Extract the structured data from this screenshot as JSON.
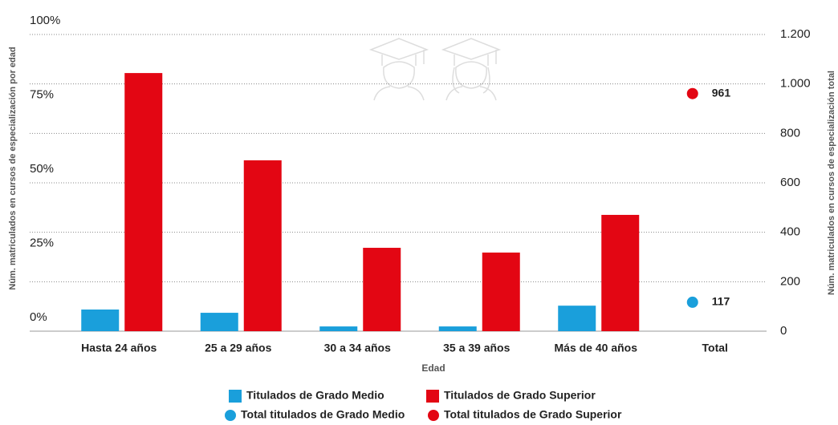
{
  "chart_data": {
    "type": "bar",
    "x_label": "Edad",
    "y_label": "Núm. matriculados en cursos de especialización por edad",
    "y2_label": "Núm. matriculados en cursos de especialización total",
    "categories": [
      "Hasta 24 años",
      "25 a 29 años",
      "30 a 34 años",
      "35 a 39 años",
      "Más de 40 años",
      "Total"
    ],
    "series": [
      {
        "name": "Titulados de Grado Medio",
        "type": "bar",
        "color": "#1a9fdb",
        "values": [
          7.3,
          6.2,
          1.6,
          1.6,
          8.6,
          null
        ]
      },
      {
        "name": "Titulados de Grado Superior",
        "type": "bar",
        "color": "#e30613",
        "values": [
          87,
          57.6,
          28.1,
          26.5,
          39.2,
          null
        ]
      },
      {
        "name": "Total titulados de Grado Medio",
        "type": "scatter",
        "axis": "y2",
        "color": "#1a9fdb",
        "values": [
          null,
          null,
          null,
          null,
          null,
          117
        ]
      },
      {
        "name": "Total titulados de Grado Superior",
        "type": "scatter",
        "axis": "y2",
        "color": "#e30613",
        "values": [
          null,
          null,
          null,
          null,
          null,
          961
        ]
      }
    ],
    "ylim": [
      0,
      100
    ],
    "yticks": [
      {
        "value": 0,
        "label": "0%"
      },
      {
        "value": 25,
        "label": "25%"
      },
      {
        "value": 50,
        "label": "50%"
      },
      {
        "value": 75,
        "label": "75%"
      },
      {
        "value": 100,
        "label": "100%"
      }
    ],
    "y2lim": [
      0,
      1200
    ],
    "y2ticks": [
      0,
      200,
      400,
      600,
      800,
      {
        "value": 1000,
        "label": "1.000"
      },
      {
        "value": 1200,
        "label": "1.200"
      }
    ],
    "grid": true
  }
}
